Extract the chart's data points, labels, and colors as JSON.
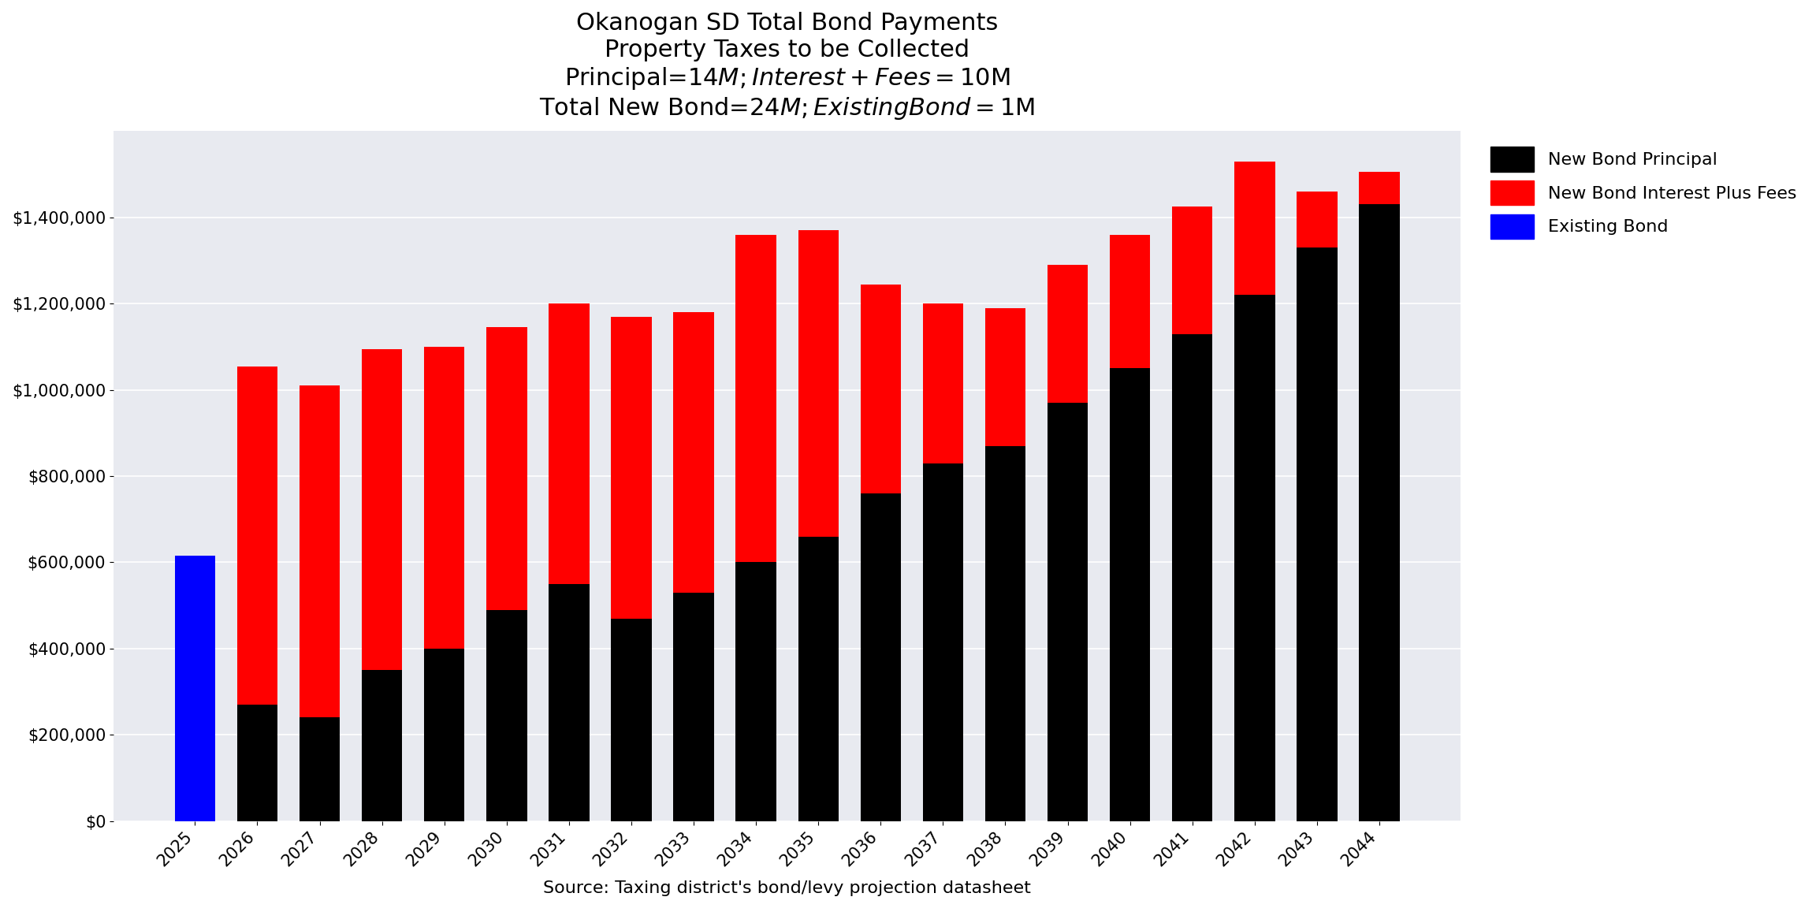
{
  "title_line1": "Okanogan SD Total Bond Payments",
  "title_line2": "Property Taxes to be Collected",
  "title_line3": "Principal=$14M; Interest + Fees=$10M",
  "title_line4": "Total New Bond=$24M; Existing Bond=$1M",
  "xlabel": "Source: Taxing district's bond/levy projection datasheet",
  "years": [
    2025,
    2026,
    2027,
    2028,
    2029,
    2030,
    2031,
    2032,
    2033,
    2034,
    2035,
    2036,
    2037,
    2038,
    2039,
    2040,
    2041,
    2042,
    2043,
    2044
  ],
  "existing_bond": [
    615000,
    0,
    0,
    0,
    0,
    0,
    0,
    0,
    0,
    0,
    0,
    0,
    0,
    0,
    0,
    0,
    0,
    0,
    0,
    0
  ],
  "new_bond_principal": [
    0,
    270000,
    240000,
    350000,
    400000,
    490000,
    550000,
    470000,
    530000,
    600000,
    660000,
    760000,
    830000,
    870000,
    970000,
    1050000,
    1130000,
    1220000,
    1330000,
    1430000
  ],
  "new_bond_interest": [
    0,
    785000,
    770000,
    745000,
    700000,
    655000,
    650000,
    700000,
    650000,
    760000,
    710000,
    485000,
    370000,
    320000,
    320000,
    310000,
    295000,
    310000,
    130000,
    75000
  ],
  "ylim": [
    0,
    1600000
  ],
  "yticks": [
    0,
    200000,
    400000,
    600000,
    800000,
    1000000,
    1200000,
    1400000
  ],
  "legend_labels": [
    "New Bond Principal",
    "New Bond Interest Plus Fees",
    "Existing Bond"
  ],
  "legend_colors": [
    "#000000",
    "#ff0000",
    "#0000ff"
  ],
  "background_color": "#e8eaf0",
  "title_fontsize": 22,
  "label_fontsize": 16,
  "tick_fontsize": 15
}
